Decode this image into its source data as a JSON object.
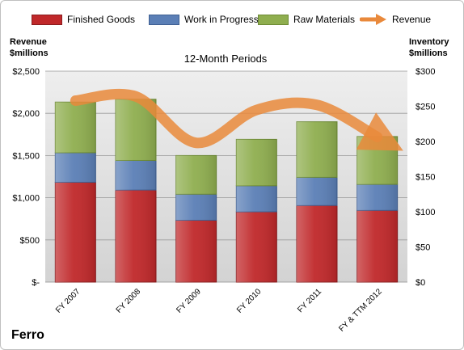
{
  "chart_data": {
    "type": "bar",
    "stacked": true,
    "title": "12-Month Periods",
    "company": "Ferro",
    "categories": [
      "FY 2007",
      "FY 2008",
      "FY 2009",
      "FY 2010",
      "FY 2011",
      "FY & TTM 2012"
    ],
    "series": [
      {
        "name": "Finished Goods",
        "axis": "right",
        "color": "#c0282a",
        "values": [
          142,
          131,
          88,
          100,
          109,
          102
        ]
      },
      {
        "name": "Work in Progress",
        "axis": "right",
        "color": "#5b7fb6",
        "values": [
          42,
          42,
          37,
          37,
          40,
          37
        ]
      },
      {
        "name": "Raw Materials",
        "axis": "right",
        "color": "#8fae4f",
        "values": [
          72,
          87,
          55,
          66,
          79,
          68
        ]
      },
      {
        "name": "Revenue",
        "axis": "left",
        "type": "line",
        "color": "#e9893b",
        "values": [
          2150,
          2200,
          1650,
          2040,
          2100,
          1720
        ]
      }
    ],
    "y_left": {
      "label_line1": "Revenue",
      "label_line2": "$millions",
      "ylim": [
        0,
        2500
      ],
      "ticks": [
        0,
        500,
        1000,
        1500,
        2000,
        2500
      ],
      "tick_labels": [
        "$-",
        "$500",
        "$1,000",
        "$1,500",
        "$2,000",
        "$2,500"
      ]
    },
    "y_right": {
      "label_line1": "Inventory",
      "label_line2": "$millions",
      "ylim": [
        0,
        300
      ],
      "ticks": [
        0,
        50,
        100,
        150,
        200,
        250,
        300
      ],
      "tick_labels": [
        "$0",
        "$50",
        "$100",
        "$150",
        "$200",
        "$250",
        "$300"
      ]
    },
    "grid": true,
    "legend_position": "top"
  }
}
